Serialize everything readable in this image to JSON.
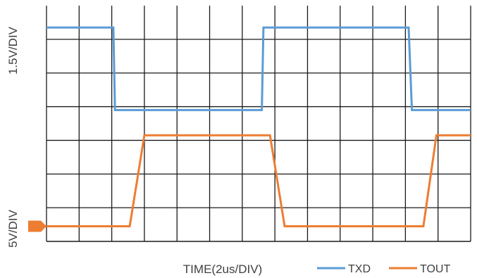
{
  "chart_data": {
    "type": "line",
    "xlabel": "TIME(2us/DIV)",
    "ylabel_upper": "1.5V/DIV",
    "ylabel_lower": "5V/DIV",
    "x_divisions": 13,
    "y_divisions": 7,
    "xlim": [
      0,
      13
    ],
    "ylim": [
      0,
      7
    ],
    "grid": true,
    "legend_position": "bottom-right",
    "series": [
      {
        "name": "TXD",
        "color": "#5B9BD5",
        "points": [
          [
            0,
            6.35
          ],
          [
            2.05,
            6.35
          ],
          [
            2.1,
            3.9
          ],
          [
            6.6,
            3.9
          ],
          [
            6.65,
            6.35
          ],
          [
            11.1,
            6.35
          ],
          [
            11.2,
            3.9
          ],
          [
            13,
            3.9
          ]
        ]
      },
      {
        "name": "TOUT",
        "color": "#ED7D31",
        "points": [
          [
            0,
            0.45
          ],
          [
            2.55,
            0.45
          ],
          [
            3.0,
            3.15
          ],
          [
            6.85,
            3.15
          ],
          [
            7.3,
            0.45
          ],
          [
            11.55,
            0.45
          ],
          [
            11.95,
            3.15
          ],
          [
            13,
            3.15
          ]
        ]
      }
    ],
    "ground_marker": {
      "color": "#ED7D31",
      "y": 0.45
    }
  }
}
